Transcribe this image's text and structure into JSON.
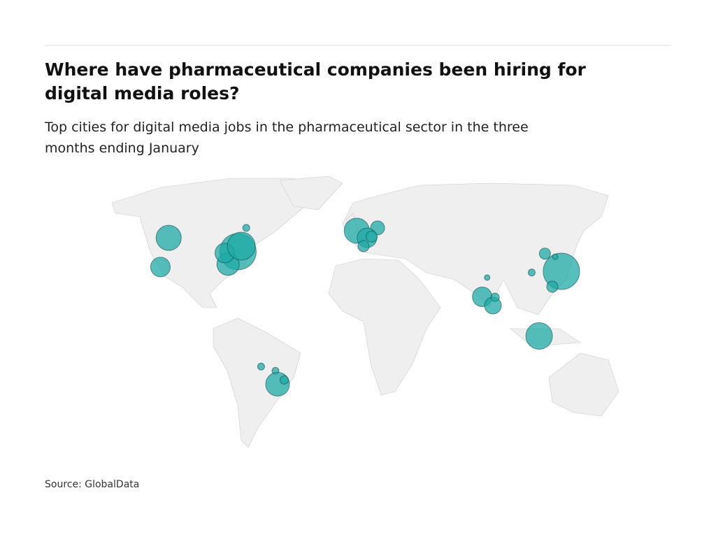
{
  "header": {
    "title_lines": [
      "Where have pharmaceutical companies been hiring for",
      "digital media roles?"
    ],
    "subtitle_lines": [
      "Top cities for digital media jobs in the pharmaceutical sector in the three",
      "months ending January"
    ]
  },
  "map": {
    "color": "#1fa9a5",
    "points": [
      {
        "lon": -116,
        "lat": 48.7,
        "size": 18
      },
      {
        "lon": -121,
        "lat": 34.3,
        "size": 14
      },
      {
        "lon": -69,
        "lat": 53.6,
        "size": 5
      },
      {
        "lon": -74,
        "lat": 41.9,
        "size": 26
      },
      {
        "lon": -80,
        "lat": 35.7,
        "size": 16
      },
      {
        "lon": -82,
        "lat": 41.2,
        "size": 14
      },
      {
        "lon": -72,
        "lat": 44.6,
        "size": 20
      },
      {
        "lon": -2,
        "lat": 52.2,
        "size": 18
      },
      {
        "lon": 10.6,
        "lat": 53.6,
        "size": 10
      },
      {
        "lon": 4.2,
        "lat": 48.7,
        "size": 14
      },
      {
        "lon": 2.1,
        "lat": 44.6,
        "size": 8
      },
      {
        "lon": 7,
        "lat": 49.3,
        "size": 8
      },
      {
        "lon": 77,
        "lat": 29.1,
        "size": 4
      },
      {
        "lon": 74,
        "lat": 19.6,
        "size": 14
      },
      {
        "lon": 80.5,
        "lat": 15.3,
        "size": 12
      },
      {
        "lon": 81.8,
        "lat": 19.4,
        "size": 6
      },
      {
        "lon": 104,
        "lat": 31.6,
        "size": 5
      },
      {
        "lon": 112,
        "lat": 40.9,
        "size": 8
      },
      {
        "lon": 122,
        "lat": 32.2,
        "size": 26
      },
      {
        "lon": 116.5,
        "lat": 24.6,
        "size": 8
      },
      {
        "lon": 118.2,
        "lat": 39.4,
        "size": 4
      },
      {
        "lon": 108.5,
        "lat": 0.3,
        "size": 19
      },
      {
        "lon": -60,
        "lat": -14.8,
        "size": 5
      },
      {
        "lon": -51.3,
        "lat": -16.9,
        "size": 5
      },
      {
        "lon": -50,
        "lat": -23.5,
        "size": 17
      },
      {
        "lon": -46,
        "lat": -21.4,
        "size": 6
      }
    ]
  },
  "footer": {
    "source": "Source: GlobalData"
  }
}
